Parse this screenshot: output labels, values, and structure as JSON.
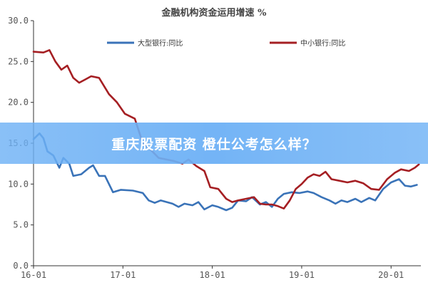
{
  "colors": {
    "big_bank": "#3a73b8",
    "small_bank": "#a51f23",
    "banner_bg": "#6cb0f5",
    "axis": "#333333"
  },
  "banner": {
    "title": "重庆股票配资 橙仕公考怎么样？"
  },
  "chart_data": {
    "type": "line",
    "title": "金融机构资金运用增速 %",
    "xlabel": "",
    "ylabel": "",
    "ylim": [
      0,
      30
    ],
    "y_ticks": [
      "0.0",
      "5.0",
      "10.0",
      "15.0",
      "20.0",
      "25.0",
      "30.0"
    ],
    "x_tick_labels": [
      "16-01",
      "17-01",
      "18-01",
      "19-01",
      "20-01"
    ],
    "grid": false,
    "legend_position": "top",
    "series": [
      {
        "name": "大型银行:同比",
        "color": "#3a73b8",
        "points": [
          [
            0.0,
            15.5
          ],
          [
            0.6,
            16.2
          ],
          [
            1.0,
            15.6
          ],
          [
            1.4,
            14.0
          ],
          [
            2.0,
            13.5
          ],
          [
            2.6,
            12.0
          ],
          [
            3.0,
            13.2
          ],
          [
            3.6,
            12.5
          ],
          [
            4.0,
            11.0
          ],
          [
            4.8,
            11.2
          ],
          [
            5.6,
            12.0
          ],
          [
            6.0,
            12.3
          ],
          [
            6.6,
            11.0
          ],
          [
            7.2,
            11.0
          ],
          [
            8.0,
            9.0
          ],
          [
            8.8,
            9.3
          ],
          [
            10.0,
            9.2
          ],
          [
            11.0,
            8.9
          ],
          [
            11.6,
            8.0
          ],
          [
            12.2,
            7.7
          ],
          [
            12.8,
            8.0
          ],
          [
            14.0,
            7.6
          ],
          [
            14.6,
            7.2
          ],
          [
            15.2,
            7.6
          ],
          [
            16.0,
            7.4
          ],
          [
            16.6,
            7.8
          ],
          [
            17.2,
            6.9
          ],
          [
            18.0,
            7.4
          ],
          [
            18.6,
            7.2
          ],
          [
            19.4,
            6.8
          ],
          [
            20.0,
            7.1
          ],
          [
            20.6,
            8.0
          ],
          [
            21.4,
            7.9
          ],
          [
            22.0,
            8.4
          ],
          [
            22.8,
            7.5
          ],
          [
            23.4,
            7.8
          ],
          [
            24.0,
            7.2
          ],
          [
            24.6,
            8.2
          ],
          [
            25.2,
            8.8
          ],
          [
            26.0,
            9.0
          ],
          [
            26.8,
            8.9
          ],
          [
            27.6,
            9.1
          ],
          [
            28.2,
            8.9
          ],
          [
            29.0,
            8.4
          ],
          [
            29.8,
            8.0
          ],
          [
            30.4,
            7.6
          ],
          [
            31.0,
            8.0
          ],
          [
            31.6,
            7.8
          ],
          [
            32.4,
            8.2
          ],
          [
            33.0,
            7.8
          ],
          [
            33.8,
            8.3
          ],
          [
            34.4,
            8.0
          ],
          [
            35.2,
            9.4
          ],
          [
            36.0,
            10.2
          ],
          [
            36.8,
            10.6
          ],
          [
            37.4,
            9.8
          ],
          [
            38.0,
            9.7
          ],
          [
            38.6,
            9.9
          ]
        ]
      },
      {
        "name": "中小银行:同比",
        "color": "#a51f23",
        "points": [
          [
            0.0,
            26.2
          ],
          [
            1.0,
            26.1
          ],
          [
            1.6,
            26.4
          ],
          [
            2.2,
            25.0
          ],
          [
            2.8,
            24.0
          ],
          [
            3.4,
            24.5
          ],
          [
            4.0,
            23.0
          ],
          [
            4.6,
            22.4
          ],
          [
            5.2,
            22.8
          ],
          [
            5.8,
            23.2
          ],
          [
            6.6,
            23.0
          ],
          [
            7.6,
            21.0
          ],
          [
            8.4,
            20.0
          ],
          [
            9.2,
            18.6
          ],
          [
            10.2,
            18.0
          ],
          [
            11.0,
            15.0
          ],
          [
            11.8,
            14.2
          ],
          [
            12.6,
            13.2
          ],
          [
            13.4,
            13.0
          ],
          [
            14.2,
            12.8
          ],
          [
            15.0,
            12.5
          ],
          [
            15.6,
            13.0
          ],
          [
            16.4,
            12.2
          ],
          [
            17.2,
            11.6
          ],
          [
            17.8,
            9.6
          ],
          [
            18.6,
            9.4
          ],
          [
            19.4,
            8.2
          ],
          [
            20.0,
            7.8
          ],
          [
            20.6,
            8.0
          ],
          [
            21.4,
            8.2
          ],
          [
            22.2,
            8.4
          ],
          [
            22.8,
            7.6
          ],
          [
            23.4,
            7.5
          ],
          [
            24.0,
            7.5
          ],
          [
            24.6,
            7.3
          ],
          [
            25.2,
            7.0
          ],
          [
            25.8,
            8.0
          ],
          [
            26.4,
            9.4
          ],
          [
            27.0,
            10.0
          ],
          [
            27.6,
            10.8
          ],
          [
            28.2,
            11.2
          ],
          [
            28.8,
            11.0
          ],
          [
            29.4,
            11.5
          ],
          [
            30.0,
            10.6
          ],
          [
            30.8,
            10.4
          ],
          [
            31.6,
            10.2
          ],
          [
            32.4,
            10.4
          ],
          [
            33.2,
            10.1
          ],
          [
            34.0,
            9.4
          ],
          [
            34.8,
            9.3
          ],
          [
            35.6,
            10.6
          ],
          [
            36.4,
            11.4
          ],
          [
            37.0,
            11.8
          ],
          [
            37.8,
            11.6
          ],
          [
            38.4,
            12.0
          ],
          [
            38.8,
            12.4
          ]
        ]
      }
    ]
  }
}
